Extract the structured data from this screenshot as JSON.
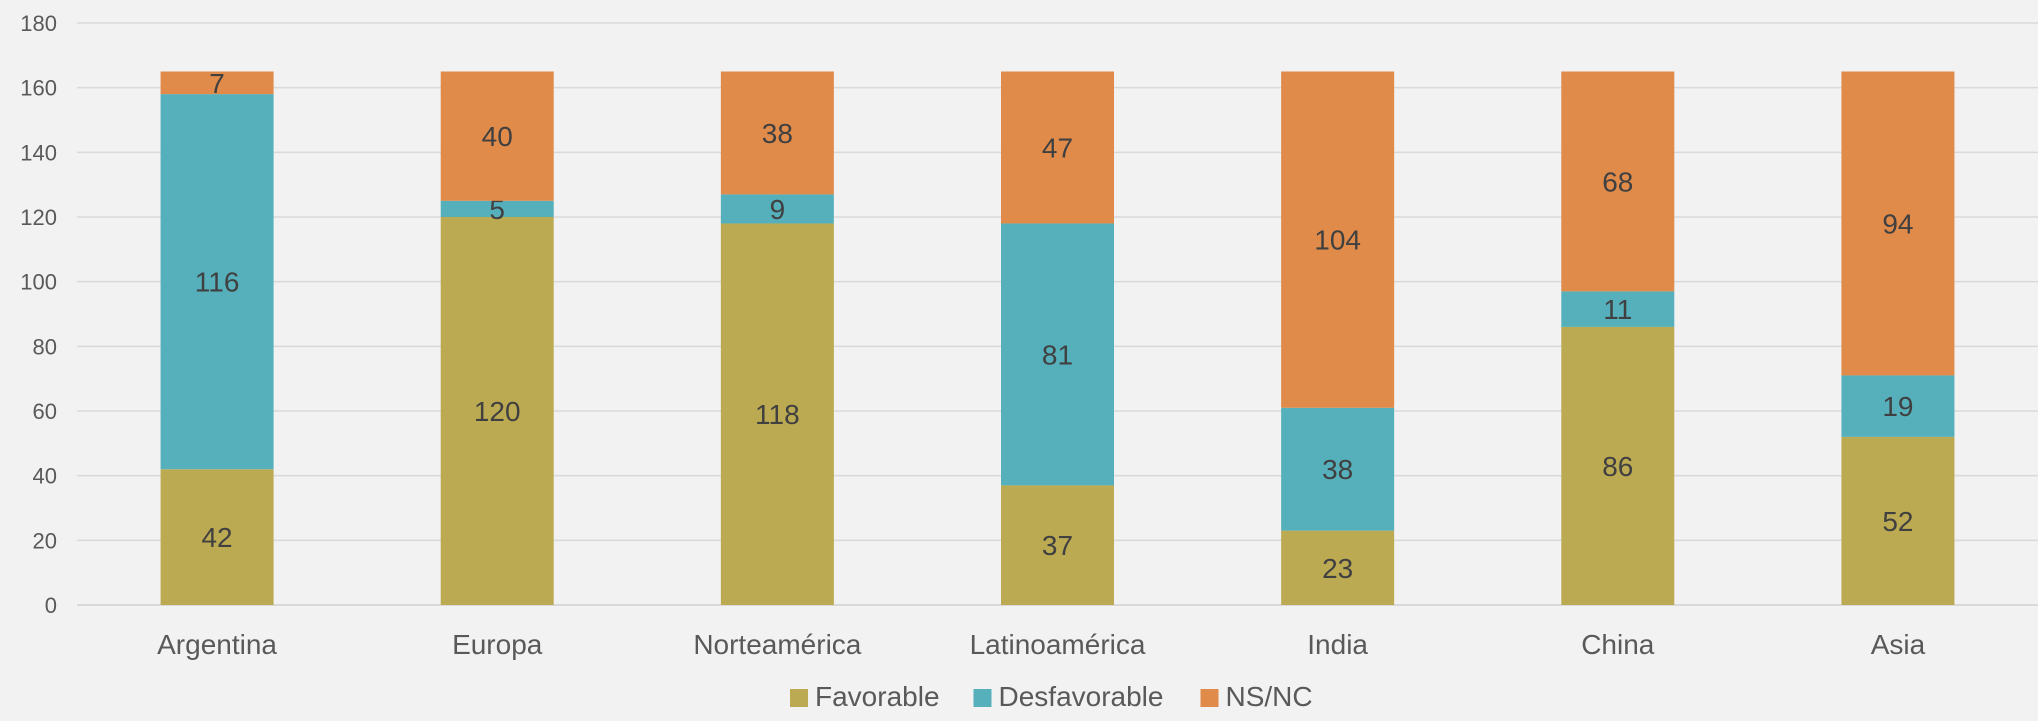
{
  "chart_data": {
    "type": "bar",
    "stacked": true,
    "title": "",
    "xlabel": "",
    "ylabel": "",
    "categories": [
      "Argentina",
      "Europa",
      "Norteamérica",
      "Latinoamérica",
      "India",
      "China",
      "Asia"
    ],
    "series": [
      {
        "name": "Favorable",
        "color": "#bcaa52",
        "values": [
          42,
          120,
          118,
          37,
          23,
          86,
          52
        ]
      },
      {
        "name": "Desfavorable",
        "color": "#55b0bc",
        "values": [
          116,
          5,
          9,
          81,
          38,
          11,
          19
        ]
      },
      {
        "name": "NS/NC",
        "color": "#e08b4a",
        "values": [
          7,
          40,
          38,
          47,
          104,
          68,
          94
        ]
      }
    ],
    "ylim": [
      0,
      180
    ],
    "yticks": [
      0,
      20,
      40,
      60,
      80,
      100,
      120,
      140,
      160,
      180
    ],
    "grid": true,
    "legend_position": "bottom"
  }
}
